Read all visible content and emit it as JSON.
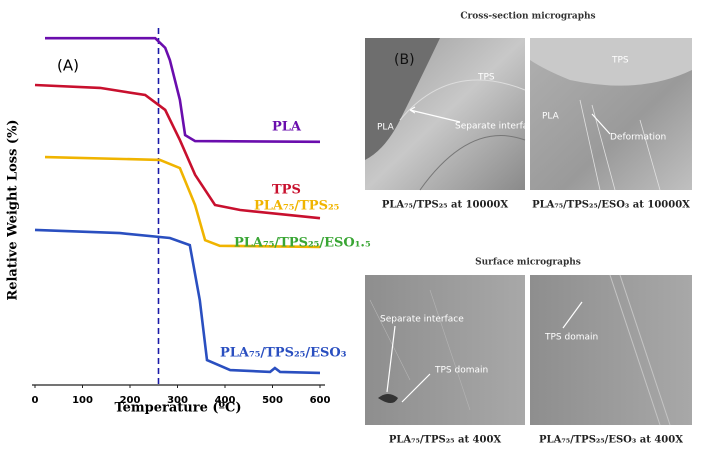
{
  "chart_data": {
    "type": "line",
    "panel_label": "(A)",
    "x_label": "Temperature (ºC)",
    "y_label": "Relative Weight Loss (%)",
    "xlim": [
      0,
      600
    ],
    "xticks": [
      0,
      100,
      200,
      300,
      400,
      500,
      600
    ],
    "ylim": [
      0,
      100
    ],
    "vline": 260,
    "vline_color": "#1a1aa8",
    "series": [
      {
        "name": "PLA",
        "color": "#6a0dad",
        "x": [
          21,
          253,
          274,
          284,
          305,
          316,
          337,
          600
        ],
        "values": [
          97.7,
          97.7,
          95,
          91.5,
          80.3,
          70.4,
          68.7,
          68.5
        ]
      },
      {
        "name": "TPS",
        "color": "#c8102e",
        "x": [
          0,
          137,
          232,
          274,
          305,
          337,
          379,
          432,
          600
        ],
        "values": [
          84.5,
          83.7,
          81.7,
          77.5,
          69,
          59.2,
          50.7,
          49.3,
          47
        ]
      },
      {
        "name": "PLA₇₅/TPS₂₅",
        "color": "#f0b400",
        "x": [
          21,
          263,
          305,
          337,
          358,
          389,
          600
        ],
        "values": [
          64.2,
          63.4,
          61.1,
          50.7,
          40.8,
          39.2,
          38.9
        ]
      },
      {
        "name": "PLA₇₅/TPS₂₅/ESO₃",
        "color": "#2a4fc0",
        "x": [
          0,
          179,
          284,
          326,
          347,
          362,
          411,
          495,
          505,
          516,
          600
        ],
        "values": [
          43.7,
          42.8,
          41.4,
          39.4,
          23.9,
          7,
          4.2,
          3.7,
          4.8,
          3.7,
          3.4
        ]
      }
    ],
    "annotations": [
      {
        "text": "PLA₇₅/TPS₂₅/ESO₁.₅",
        "color": "#3aa635"
      }
    ]
  },
  "panel_b": {
    "label": "(B)",
    "cross_section": {
      "title": "Cross-section micrographs",
      "images": [
        {
          "caption": "PLA₇₅/TPS₂₅ at 10000X",
          "labels": [
            "TPS",
            "PLA",
            "Separate interface"
          ]
        },
        {
          "caption": "PLA₇₅/TPS₂₅/ESO₃ at 10000X",
          "labels": [
            "TPS",
            "PLA",
            "Deformation"
          ]
        }
      ]
    },
    "surface": {
      "title": "Surface micrographs",
      "images": [
        {
          "caption": "PLA₇₅/TPS₂₅ at 400X",
          "labels": [
            "Separate interface",
            "TPS domain"
          ]
        },
        {
          "caption": "PLA₇₅/TPS₂₅/ESO₃ at 400X",
          "labels": [
            "TPS domain"
          ]
        }
      ]
    }
  }
}
